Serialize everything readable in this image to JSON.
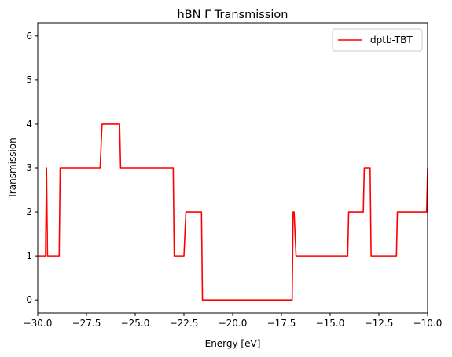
{
  "chart_data": {
    "type": "line",
    "title": "hBN Γ Transmission",
    "xlabel": "Energy [eV]",
    "ylabel": "Transmission",
    "xlim": [
      -30,
      -10
    ],
    "ylim": [
      -0.3,
      6.3
    ],
    "xticks": [
      -30,
      -27.5,
      -25,
      -22.5,
      -20,
      -17.5,
      -15,
      -12.5,
      -10
    ],
    "xtick_labels": [
      "−30.0",
      "−27.5",
      "−25.0",
      "−22.5",
      "−20.0",
      "−17.5",
      "−15.0",
      "−12.5",
      "−10.0"
    ],
    "yticks": [
      0,
      1,
      2,
      3,
      4,
      5,
      6
    ],
    "ytick_labels": [
      "0",
      "1",
      "2",
      "3",
      "4",
      "5",
      "6"
    ],
    "grid": false,
    "legend_position": "top-right",
    "series": [
      {
        "name": "dptb-TBT",
        "color": "#ff0000",
        "points": [
          [
            -30.0,
            1
          ],
          [
            -29.6,
            1
          ],
          [
            -29.55,
            3
          ],
          [
            -29.5,
            1
          ],
          [
            -28.9,
            1
          ],
          [
            -28.85,
            3
          ],
          [
            -26.8,
            3
          ],
          [
            -26.7,
            4
          ],
          [
            -25.8,
            4
          ],
          [
            -25.75,
            3
          ],
          [
            -23.05,
            3
          ],
          [
            -23.0,
            1
          ],
          [
            -22.5,
            1
          ],
          [
            -22.4,
            2
          ],
          [
            -21.6,
            2
          ],
          [
            -21.55,
            0
          ],
          [
            -16.95,
            0
          ],
          [
            -16.9,
            2
          ],
          [
            -16.85,
            2
          ],
          [
            -16.75,
            1
          ],
          [
            -14.1,
            1
          ],
          [
            -14.05,
            2
          ],
          [
            -13.3,
            2
          ],
          [
            -13.25,
            3
          ],
          [
            -12.95,
            3
          ],
          [
            -12.9,
            1
          ],
          [
            -11.6,
            1
          ],
          [
            -11.55,
            2
          ],
          [
            -10.05,
            2
          ],
          [
            -10.0,
            3
          ]
        ]
      }
    ]
  }
}
